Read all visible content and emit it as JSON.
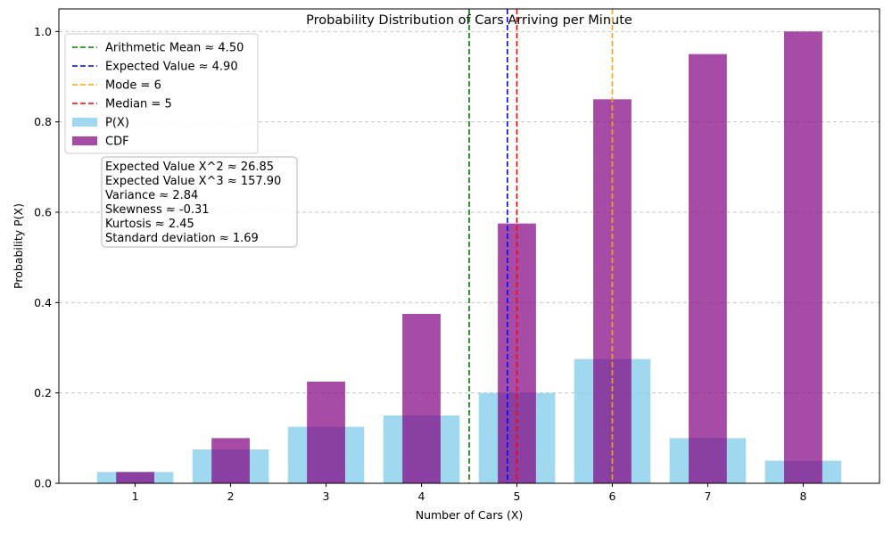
{
  "chart_data": {
    "type": "bar",
    "title": "Probability Distribution of Cars Arriving per Minute",
    "xlabel": "Number of Cars (X)",
    "ylabel": "Probability P(X)",
    "categories": [
      1,
      2,
      3,
      4,
      5,
      6,
      7,
      8
    ],
    "xlim": [
      0.2,
      8.8
    ],
    "ylim": [
      0.0,
      1.05
    ],
    "yticks": [
      0.0,
      0.2,
      0.4,
      0.6,
      0.8,
      1.0
    ],
    "yticks_labels": [
      "0.0",
      "0.2",
      "0.4",
      "0.6",
      "0.8",
      "1.0"
    ],
    "grid": "y-dashed",
    "legend_position": "upper-left",
    "series": [
      {
        "name": "P(X)",
        "values": [
          0.025,
          0.075,
          0.125,
          0.15,
          0.2,
          0.275,
          0.1,
          0.05
        ],
        "color": "#87ceeb",
        "opacity": 0.8,
        "bar_width": 0.8
      },
      {
        "name": "CDF",
        "values": [
          0.025,
          0.1,
          0.225,
          0.375,
          0.575,
          0.85,
          0.95,
          1.0
        ],
        "color": "#800080",
        "opacity": 0.7,
        "bar_width": 0.4
      }
    ],
    "vlines": [
      {
        "name": "Arithmetic Mean ≈ 4.50",
        "x": 4.5,
        "color": "#008000"
      },
      {
        "name": "Expected Value ≈ 4.90",
        "x": 4.9,
        "color": "#0000ff"
      },
      {
        "name": "Mode = 6",
        "x": 6,
        "color": "#ffa500"
      },
      {
        "name": "Median = 5",
        "x": 5,
        "color": "#ff0000"
      }
    ],
    "stats_box": [
      "Expected Value X^2 ≈ 26.85",
      "Expected Value X^3 ≈ 157.90",
      "Variance ≈ 2.84",
      "Skewness ≈ -0.31",
      "Kurtosis ≈ 2.45",
      "Standard deviation ≈ 1.69"
    ]
  }
}
